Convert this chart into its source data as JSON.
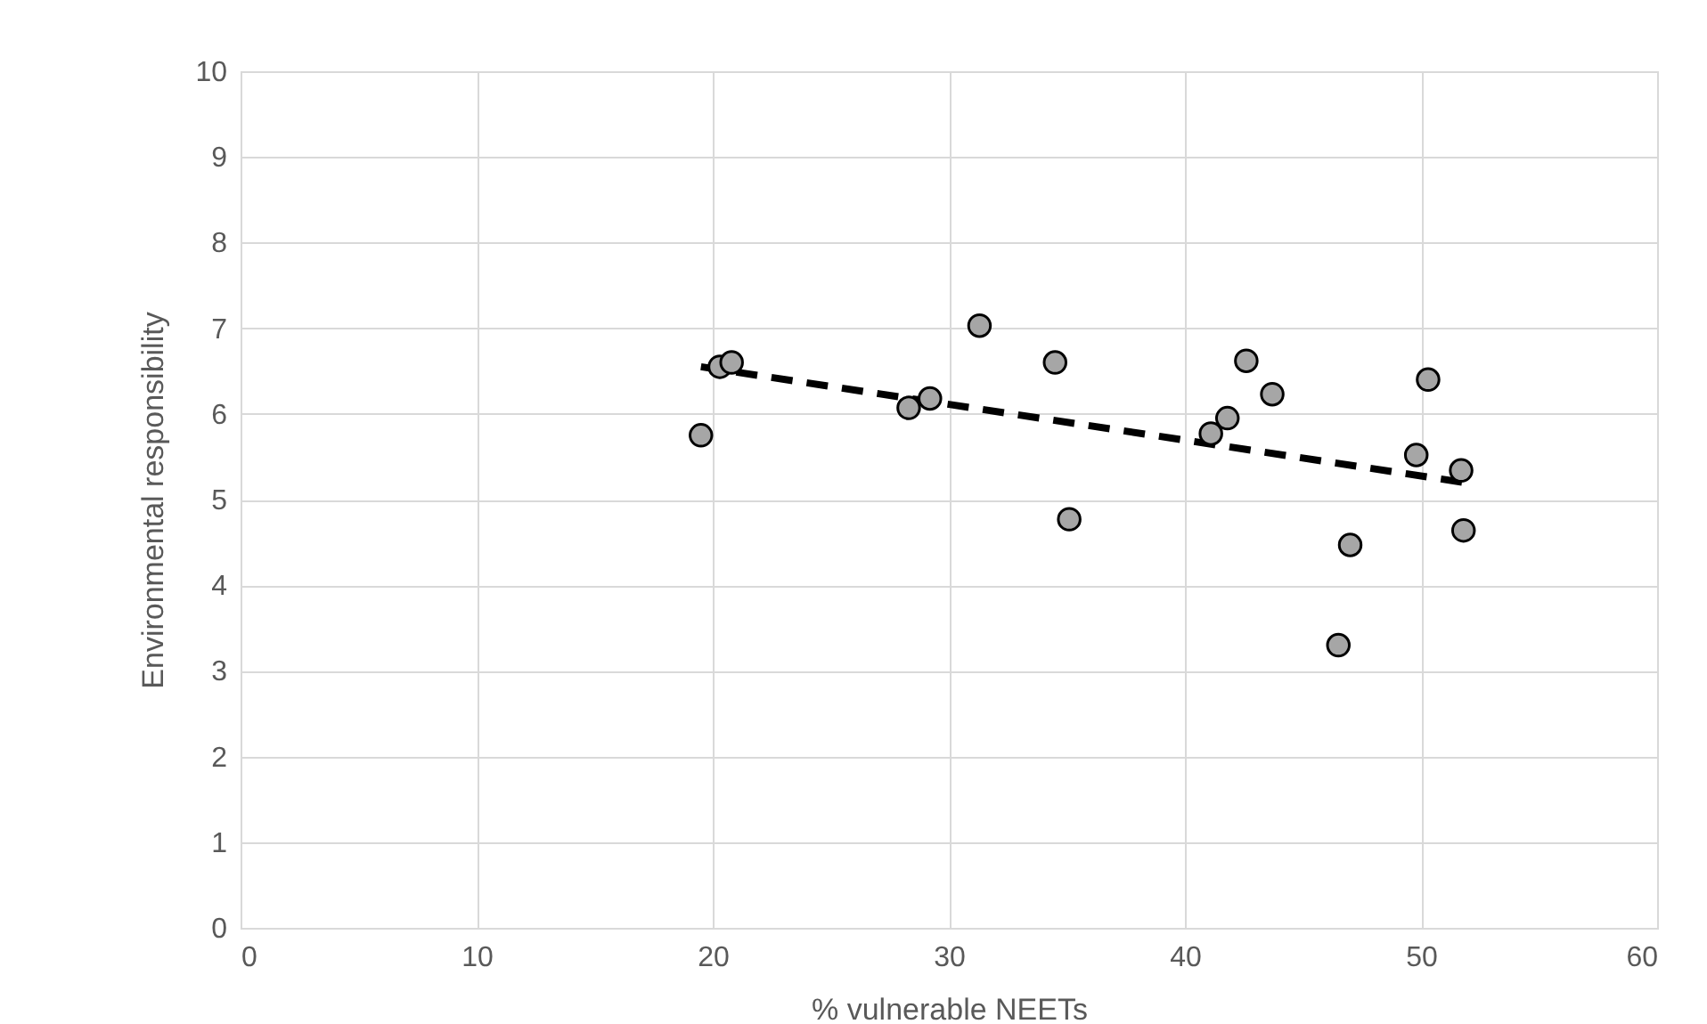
{
  "chart_data": {
    "type": "scatter",
    "xlabel": "% vulnerable NEETs",
    "ylabel": "Environmental responsibility",
    "xlim": [
      0,
      60
    ],
    "xticks": [
      0,
      10,
      20,
      30,
      40,
      50,
      60
    ],
    "ylim": [
      0,
      10
    ],
    "yticks": [
      0,
      1,
      2,
      3,
      4,
      5,
      6,
      7,
      8,
      9,
      10
    ],
    "grid": true,
    "marker": "circle",
    "series": [
      {
        "color": "#a6a6a6",
        "x": [
          19.5,
          20.3,
          20.8,
          28.3,
          29.2,
          31.3,
          34.5,
          35.1,
          41.1,
          41.8,
          42.6,
          43.7,
          46.5,
          47.0,
          49.8,
          50.3,
          51.7,
          51.8
        ],
        "values": [
          5.75,
          6.55,
          6.6,
          6.07,
          6.18,
          7.03,
          6.6,
          4.77,
          5.77,
          5.95,
          6.62,
          6.23,
          3.3,
          4.47,
          5.52,
          6.4,
          5.34,
          4.64
        ]
      },
      {
        "type": "line",
        "color": "#000000",
        "line_style": "dashed",
        "marker": "none",
        "x": [
          19.5,
          51.8
        ],
        "values": [
          6.55,
          5.2
        ]
      }
    ]
  }
}
